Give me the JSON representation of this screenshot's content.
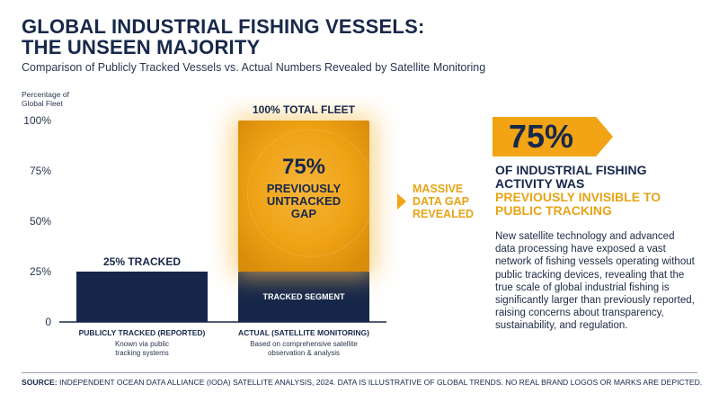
{
  "title_line1": "GLOBAL INDUSTRIAL FISHING VESSELS:",
  "title_line2": "THE UNSEEN MAJORITY",
  "subtitle": "Comparison of Publicly Tracked Vessels vs. Actual Numbers Revealed by Satellite Monitoring",
  "chart_data": {
    "type": "bar",
    "ylabel": [
      "Percentage of",
      "Global Fleet"
    ],
    "ylim": [
      0,
      100
    ],
    "yticks": [
      "0",
      "25%",
      "50%",
      "75%",
      "100%"
    ],
    "grid": false,
    "categories": [
      {
        "label": "PUBLICLY TRACKED (REPORTED)",
        "sub": [
          "Known via public",
          "tracking systems"
        ]
      },
      {
        "label": "ACTUAL (SATELLITE MONITORING)",
        "sub": [
          "Based on comprehensive satellite",
          "observation & analysis"
        ]
      }
    ],
    "bars": [
      {
        "category": "PUBLICLY TRACKED (REPORTED)",
        "segments": [
          {
            "name": "tracked",
            "value": 25,
            "color": "#15264a",
            "label": "25% TRACKED"
          }
        ]
      },
      {
        "category": "ACTUAL (SATELLITE MONITORING)",
        "total_label": "100% TOTAL FLEET",
        "segments": [
          {
            "name": "tracked",
            "value": 25,
            "color": "#15264a",
            "label": "TRACKED SEGMENT"
          },
          {
            "name": "untracked",
            "value": 75,
            "color": "#f2a415",
            "label_value": "75%",
            "label": [
              "PREVIOUSLY",
              "UNTRACKED",
              "GAP"
            ]
          }
        ]
      }
    ]
  },
  "callout": {
    "lines": "MASSIVE\nDATA GAP\nREVEALED",
    "color": "#f2a415"
  },
  "stat": {
    "value": "75%",
    "head1": "OF INDUSTRIAL FISHING",
    "head2": "ACTIVITY WAS",
    "head3": "PREVIOUSLY INVISIBLE TO",
    "head4": "PUBLIC TRACKING",
    "body": "New satellite technology and advanced data processing have exposed a vast network of fishing vessels operating without public tracking devices, revealing that the true scale of global industrial fishing is significantly larger than previously reported, raising concerns about transparency, sustainability, and regulation."
  },
  "source_label": "SOURCE:",
  "source_text": " INDEPENDENT OCEAN DATA ALLIANCE (IODA) SATELLITE ANALYSIS, 2024. DATA IS ILLUSTRATIVE OF GLOBAL TRENDS. NO REAL BRAND LOGOS OR MARKS ARE DEPICTED.",
  "colors": {
    "navy": "#15264a",
    "gold": "#f2a415",
    "accent_text": "#e7a417"
  }
}
